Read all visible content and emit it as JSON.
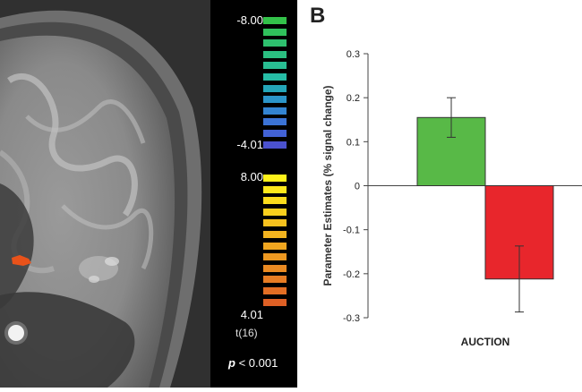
{
  "panel_letter": "B",
  "colorbar": {
    "neg_top_label": "-8.00",
    "neg_bottom_label": "-4.01",
    "pos_top_label": "8.00",
    "pos_bottom_label": "4.01",
    "unit_label": "t(16)",
    "p_symbol": "p",
    "p_value": "< 0.001",
    "neg_colors": [
      "#33c24a",
      "#30c15c",
      "#2ec06e",
      "#2bbf81",
      "#29be93",
      "#26bda6",
      "#24a6b9",
      "#2b95c9",
      "#3384d2",
      "#3b73d6",
      "#4262d6",
      "#4b52cf"
    ],
    "pos_colors": [
      "#fff21a",
      "#fde81b",
      "#fbdc1c",
      "#f9cf1d",
      "#f6c11e",
      "#f3b41f",
      "#f0a620",
      "#ed9821",
      "#ea8a22",
      "#e67c23",
      "#e26e24",
      "#de6025"
    ]
  },
  "chart_data": {
    "type": "bar",
    "categories": [
      "AUCTION"
    ],
    "series": [
      {
        "values": [
          0.155
        ],
        "error": [
          0.045
        ],
        "color": "#58b947"
      },
      {
        "values": [
          -0.212
        ],
        "error": [
          0.075
        ],
        "color": "#e8262c"
      }
    ],
    "ylabel": "Parameter Estimates (% signal change)",
    "xlabel": "",
    "ylim": [
      -0.3,
      0.3
    ],
    "yticks": [
      "0.3",
      "0.2",
      "0.1",
      "0",
      "-0.1",
      "-0.2",
      "-0.3"
    ],
    "grid": false
  }
}
